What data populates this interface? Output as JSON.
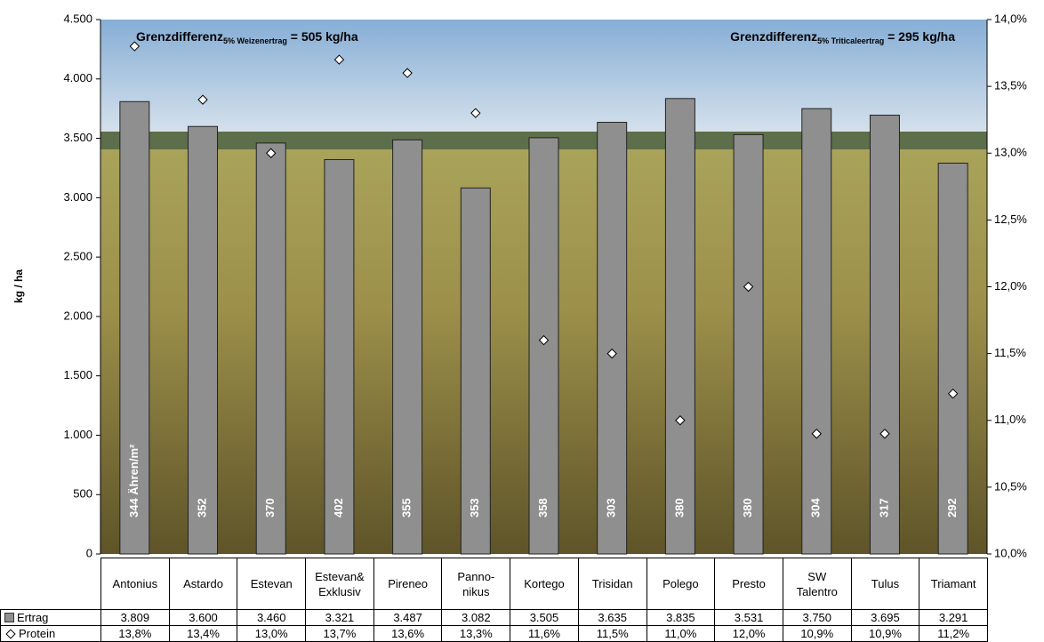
{
  "chart_data": {
    "type": "bar",
    "y_label": "kg / ha",
    "categories": [
      "Antonius",
      "Astardo",
      "Estevan",
      "Estevan&\nExklusiv",
      "Pireneo",
      "Panno-\nnikus",
      "Kortego",
      "Trisidan",
      "Polego",
      "Presto",
      "SW\nTalentro",
      "Tulus",
      "Triamant"
    ],
    "series": [
      {
        "name": "Ertrag",
        "color": "#8f8f8f",
        "values": [
          3809,
          3600,
          3460,
          3321,
          3487,
          3082,
          3505,
          3635,
          3835,
          3531,
          3750,
          3695,
          3291
        ],
        "value_labels": [
          "3.809",
          "3.600",
          "3.460",
          "3.321",
          "3.487",
          "3.082",
          "3.505",
          "3.635",
          "3.835",
          "3.531",
          "3.750",
          "3.695",
          "3.291"
        ]
      },
      {
        "name": "Protein",
        "color": "#ffffff",
        "axis": "y2",
        "values": [
          13.8,
          13.4,
          13.0,
          13.7,
          13.6,
          13.3,
          11.6,
          11.5,
          11.0,
          12.0,
          10.9,
          10.9,
          11.2
        ],
        "value_labels": [
          "13,8%",
          "13,4%",
          "13,0%",
          "13,7%",
          "13,6%",
          "13,3%",
          "11,6%",
          "11,5%",
          "11,0%",
          "12,0%",
          "10,9%",
          "10,9%",
          "11,2%"
        ]
      }
    ],
    "bar_labels": [
      "344 Ähren/m²",
      "352",
      "370",
      "402",
      "355",
      "353",
      "358",
      "303",
      "380",
      "380",
      "304",
      "317",
      "292"
    ],
    "annotations": [
      {
        "text": "Grenzdifferenz",
        "sub": "5% Weizenertrag",
        "rest": " = 505 kg/ha"
      },
      {
        "text": "Grenzdifferenz",
        "sub": "5% Triticaleertrag",
        "rest": " = 295 kg/ha"
      }
    ],
    "ylim": [
      0,
      4500
    ],
    "yticks": [
      0,
      500,
      {
        "value": 1000,
        "label": "1.000"
      },
      {
        "value": 1500,
        "label": "1.500"
      },
      {
        "value": 2000,
        "label": "2.000"
      },
      {
        "value": 2500,
        "label": "2.500"
      },
      {
        "value": 3000,
        "label": "3.000"
      },
      {
        "value": 3500,
        "label": "3.500"
      },
      {
        "value": 4000,
        "label": "4.000"
      },
      {
        "value": 4500,
        "label": "4.500"
      }
    ],
    "y2lim": [
      10,
      14
    ],
    "y2ticks": [
      {
        "value": 10,
        "label": "10,0%"
      },
      {
        "value": 10.5,
        "label": "10,5%"
      },
      {
        "value": 11,
        "label": "11,0%"
      },
      {
        "value": 11.5,
        "label": "11,5%"
      },
      {
        "value": 12,
        "label": "12,0%"
      },
      {
        "value": 12.5,
        "label": "12,5%"
      },
      {
        "value": 13,
        "label": "13,0%"
      },
      {
        "value": 13.5,
        "label": "13,5%"
      },
      {
        "value": 14,
        "label": "14,0%"
      }
    ],
    "grid": false
  }
}
